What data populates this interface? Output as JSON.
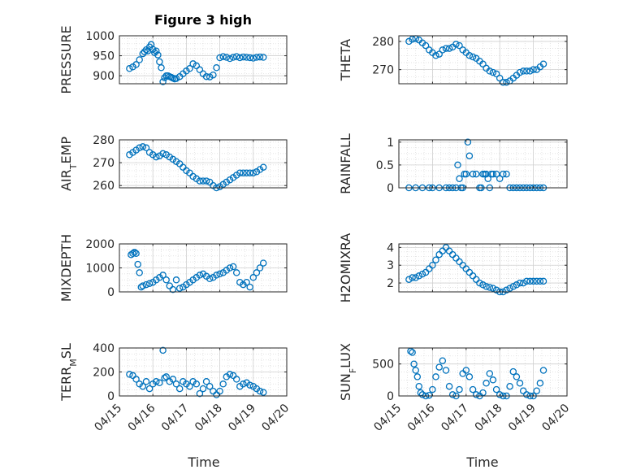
{
  "figure_title": "Figure 3 high",
  "x_axis_label": "Time",
  "x_tick_labels": [
    "04/15",
    "04/16",
    "04/17",
    "04/18",
    "04/19",
    "04/20"
  ],
  "marker_color": "#0072BD",
  "grid": true,
  "chart_data": [
    {
      "type": "scatter",
      "ylabel": "PRESSURE",
      "ylim": [
        880,
        1000
      ],
      "yticks": [
        900,
        950,
        1000
      ],
      "xlim": [
        0,
        5
      ],
      "x": [
        0.3,
        0.4,
        0.5,
        0.6,
        0.7,
        0.75,
        0.8,
        0.85,
        0.9,
        0.95,
        1.0,
        1.05,
        1.1,
        1.15,
        1.2,
        1.25,
        1.3,
        1.35,
        1.4,
        1.45,
        1.5,
        1.55,
        1.6,
        1.65,
        1.7,
        1.8,
        1.9,
        2.0,
        2.1,
        2.2,
        2.3,
        2.4,
        2.5,
        2.6,
        2.7,
        2.8,
        2.9,
        3.0,
        3.1,
        3.2,
        3.3,
        3.4,
        3.5,
        3.6,
        3.7,
        3.8,
        3.9,
        4.0,
        4.1,
        4.2,
        4.3
      ],
      "y": [
        918,
        922,
        928,
        940,
        955,
        960,
        965,
        962,
        972,
        978,
        966,
        958,
        962,
        952,
        935,
        920,
        885,
        895,
        900,
        900,
        898,
        896,
        894,
        892,
        893,
        898,
        905,
        912,
        918,
        930,
        925,
        915,
        905,
        898,
        897,
        902,
        920,
        945,
        948,
        946,
        943,
        946,
        948,
        945,
        947,
        946,
        945,
        944,
        946,
        947,
        946
      ]
    },
    {
      "type": "scatter",
      "ylabel": "THETA",
      "ylim": [
        265,
        282
      ],
      "yticks": [
        270,
        280
      ],
      "xlim": [
        0,
        5
      ],
      "x": [
        0.3,
        0.4,
        0.5,
        0.6,
        0.7,
        0.8,
        0.9,
        1.0,
        1.1,
        1.2,
        1.3,
        1.4,
        1.5,
        1.6,
        1.7,
        1.8,
        1.9,
        2.0,
        2.1,
        2.2,
        2.3,
        2.4,
        2.5,
        2.6,
        2.7,
        2.8,
        2.9,
        3.0,
        3.1,
        3.2,
        3.3,
        3.4,
        3.5,
        3.6,
        3.7,
        3.8,
        3.9,
        4.0,
        4.1,
        4.2,
        4.3
      ],
      "y": [
        280,
        280.8,
        281,
        280.5,
        279.5,
        278.5,
        277,
        276,
        275,
        275.5,
        277,
        277.5,
        277.5,
        278,
        279,
        278.5,
        277,
        276,
        275,
        274.5,
        274,
        273,
        272,
        270.5,
        269.5,
        269,
        268.5,
        267,
        265.5,
        265.5,
        266,
        267,
        268,
        269,
        269.5,
        269.5,
        269.5,
        270,
        270,
        271,
        272
      ]
    },
    {
      "type": "scatter",
      "ylabel": "AIR_TEMP",
      "ylim": [
        259,
        280
      ],
      "yticks": [
        260,
        270,
        280
      ],
      "xlim": [
        0,
        5
      ],
      "x": [
        0.3,
        0.4,
        0.5,
        0.6,
        0.7,
        0.8,
        0.9,
        1.0,
        1.1,
        1.2,
        1.3,
        1.4,
        1.5,
        1.6,
        1.7,
        1.8,
        1.9,
        2.0,
        2.1,
        2.2,
        2.3,
        2.4,
        2.5,
        2.6,
        2.7,
        2.8,
        2.9,
        3.0,
        3.1,
        3.2,
        3.3,
        3.4,
        3.5,
        3.6,
        3.7,
        3.8,
        3.9,
        4.0,
        4.1,
        4.2,
        4.3
      ],
      "y": [
        273.5,
        274.5,
        275.5,
        276.5,
        277,
        276.5,
        274.5,
        273.5,
        272.5,
        273,
        274,
        273.5,
        272.5,
        271.5,
        270.5,
        269.5,
        268,
        266.5,
        265.5,
        264,
        263,
        262,
        262,
        262,
        261.5,
        260,
        259,
        259.5,
        260.5,
        261.5,
        262.5,
        263.5,
        264.5,
        265.5,
        265.5,
        265.5,
        265.5,
        265.5,
        266,
        267,
        268
      ]
    },
    {
      "type": "scatter",
      "ylabel": "RAINFALL",
      "ylim": [
        0,
        1.05
      ],
      "yticks": [
        0,
        0.5,
        1
      ],
      "xlim": [
        0,
        5
      ],
      "x": [
        0.3,
        0.5,
        0.7,
        0.9,
        1.0,
        1.2,
        1.4,
        1.5,
        1.6,
        1.7,
        1.75,
        1.8,
        1.85,
        1.9,
        1.95,
        2.0,
        2.05,
        2.1,
        2.2,
        2.3,
        2.4,
        2.45,
        2.5,
        2.55,
        2.6,
        2.65,
        2.7,
        2.75,
        2.8,
        2.9,
        3.0,
        3.1,
        3.2,
        3.3,
        3.4,
        3.5,
        3.6,
        3.7,
        3.8,
        3.9,
        4.0,
        4.1,
        4.2,
        4.3
      ],
      "y": [
        0,
        0,
        0,
        0,
        0,
        0,
        0,
        0,
        0,
        0,
        0.5,
        0.2,
        0,
        0,
        0.3,
        0.3,
        1.0,
        0.7,
        0.3,
        0.3,
        0,
        0,
        0.3,
        0.3,
        0.3,
        0.2,
        0,
        0.3,
        0.3,
        0.3,
        0.2,
        0.3,
        0.3,
        0,
        0,
        0,
        0,
        0,
        0,
        0,
        0,
        0,
        0,
        0
      ]
    },
    {
      "type": "scatter",
      "ylabel": "MIXDEPTH",
      "ylim": [
        0,
        2000
      ],
      "yticks": [
        0,
        1000,
        2000
      ],
      "xlim": [
        0,
        5
      ],
      "x": [
        0.35,
        0.4,
        0.45,
        0.5,
        0.55,
        0.6,
        0.65,
        0.7,
        0.8,
        0.9,
        1.0,
        1.1,
        1.2,
        1.3,
        1.4,
        1.5,
        1.6,
        1.7,
        1.8,
        1.9,
        2.0,
        2.1,
        2.2,
        2.3,
        2.4,
        2.5,
        2.6,
        2.7,
        2.8,
        2.9,
        3.0,
        3.1,
        3.2,
        3.3,
        3.4,
        3.5,
        3.6,
        3.7,
        3.8,
        3.9,
        4.0,
        4.1,
        4.2,
        4.3
      ],
      "y": [
        1550,
        1600,
        1650,
        1600,
        1150,
        800,
        200,
        250,
        300,
        350,
        400,
        500,
        600,
        700,
        500,
        250,
        100,
        500,
        150,
        200,
        300,
        400,
        500,
        600,
        700,
        750,
        650,
        550,
        600,
        700,
        750,
        800,
        900,
        1000,
        1050,
        800,
        400,
        300,
        400,
        200,
        600,
        800,
        1000,
        1200
      ]
    },
    {
      "type": "scatter",
      "ylabel": "H2OMIXRA",
      "ylim": [
        1.5,
        4.2
      ],
      "yticks": [
        2,
        3,
        4
      ],
      "xlim": [
        0,
        5
      ],
      "x": [
        0.3,
        0.4,
        0.5,
        0.6,
        0.7,
        0.8,
        0.9,
        1.0,
        1.1,
        1.2,
        1.3,
        1.4,
        1.5,
        1.6,
        1.7,
        1.8,
        1.9,
        2.0,
        2.1,
        2.2,
        2.3,
        2.4,
        2.5,
        2.6,
        2.7,
        2.8,
        2.9,
        3.0,
        3.1,
        3.2,
        3.3,
        3.4,
        3.5,
        3.6,
        3.7,
        3.8,
        3.9,
        4.0,
        4.1,
        4.2,
        4.3
      ],
      "y": [
        2.2,
        2.3,
        2.3,
        2.4,
        2.5,
        2.6,
        2.8,
        3.0,
        3.3,
        3.6,
        3.8,
        4.0,
        3.8,
        3.6,
        3.4,
        3.2,
        3.0,
        2.8,
        2.6,
        2.4,
        2.2,
        2.0,
        1.9,
        1.8,
        1.75,
        1.7,
        1.6,
        1.5,
        1.5,
        1.6,
        1.7,
        1.8,
        1.9,
        2.0,
        2.0,
        2.1,
        2.1,
        2.1,
        2.1,
        2.1,
        2.1
      ]
    },
    {
      "type": "scatter",
      "ylabel": "TERR_MSL",
      "ylim": [
        0,
        400
      ],
      "yticks": [
        0,
        200,
        400
      ],
      "xlim": [
        0,
        5
      ],
      "x": [
        0.3,
        0.4,
        0.5,
        0.6,
        0.7,
        0.8,
        0.9,
        1.0,
        1.1,
        1.2,
        1.3,
        1.35,
        1.4,
        1.5,
        1.6,
        1.7,
        1.8,
        1.9,
        2.0,
        2.1,
        2.2,
        2.3,
        2.4,
        2.5,
        2.6,
        2.7,
        2.8,
        2.9,
        3.0,
        3.1,
        3.2,
        3.3,
        3.4,
        3.5,
        3.6,
        3.7,
        3.8,
        3.9,
        4.0,
        4.1,
        4.2,
        4.3
      ],
      "y": [
        180,
        170,
        140,
        100,
        80,
        120,
        60,
        100,
        120,
        110,
        380,
        150,
        160,
        120,
        140,
        100,
        60,
        120,
        100,
        80,
        120,
        100,
        20,
        60,
        120,
        80,
        40,
        10,
        40,
        100,
        160,
        180,
        170,
        140,
        80,
        100,
        110,
        90,
        80,
        60,
        40,
        30
      ]
    },
    {
      "type": "scatter",
      "ylabel": "SUN_FLUX",
      "ylim": [
        0,
        750
      ],
      "yticks": [
        0,
        500
      ],
      "xlim": [
        0,
        5
      ],
      "x": [
        0.35,
        0.4,
        0.45,
        0.5,
        0.55,
        0.6,
        0.65,
        0.7,
        0.8,
        0.9,
        1.0,
        1.1,
        1.2,
        1.3,
        1.4,
        1.5,
        1.6,
        1.7,
        1.8,
        1.9,
        2.0,
        2.1,
        2.2,
        2.3,
        2.4,
        2.5,
        2.6,
        2.7,
        2.8,
        2.9,
        3.0,
        3.1,
        3.2,
        3.3,
        3.4,
        3.5,
        3.6,
        3.7,
        3.8,
        3.9,
        4.0,
        4.1,
        4.2,
        4.3
      ],
      "y": [
        700,
        680,
        500,
        400,
        300,
        150,
        50,
        20,
        0,
        10,
        100,
        300,
        450,
        550,
        400,
        150,
        20,
        0,
        100,
        350,
        400,
        300,
        100,
        20,
        0,
        50,
        200,
        350,
        250,
        100,
        20,
        0,
        0,
        150,
        380,
        300,
        200,
        80,
        20,
        0,
        0,
        80,
        200,
        400
      ]
    }
  ]
}
